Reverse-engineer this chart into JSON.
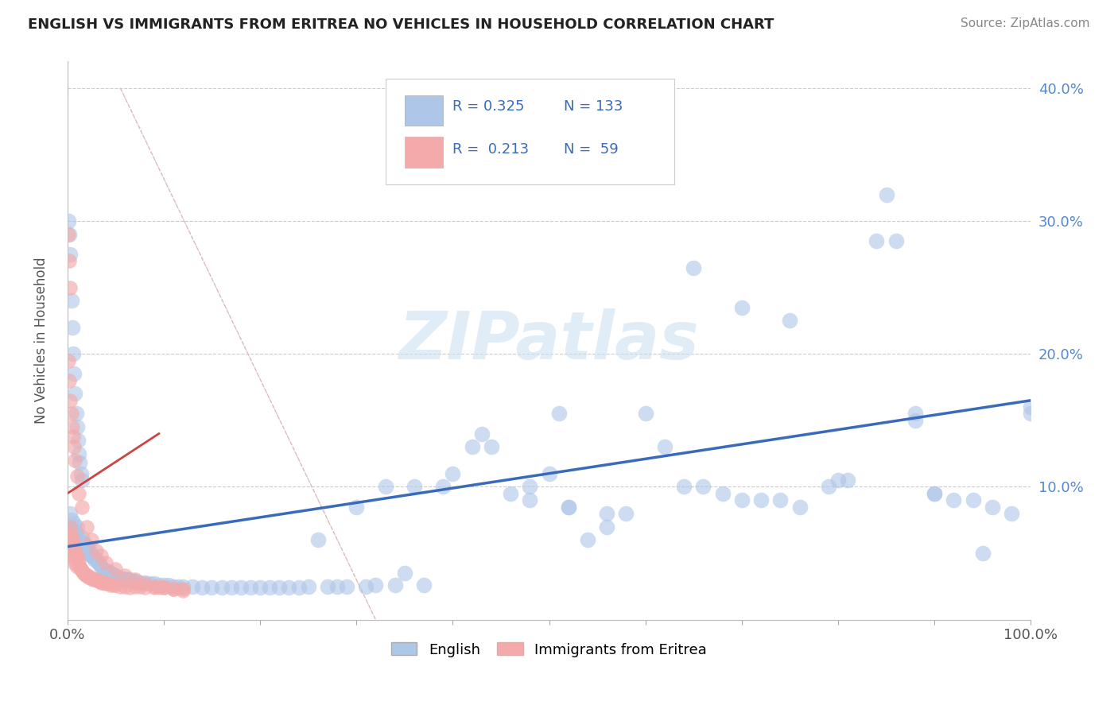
{
  "title": "ENGLISH VS IMMIGRANTS FROM ERITREA NO VEHICLES IN HOUSEHOLD CORRELATION CHART",
  "source": "Source: ZipAtlas.com",
  "ylabel": "No Vehicles in Household",
  "english_color": "#aec6e8",
  "eritrea_color": "#f4aaaa",
  "english_edge_color": "#7aa8d4",
  "eritrea_edge_color": "#e07070",
  "english_line_color": "#3a6bba",
  "eritrea_line_color": "#cc4444",
  "watermark_color": "#c8dff0",
  "xlim": [
    0.0,
    1.0
  ],
  "ylim": [
    0.0,
    0.42
  ],
  "english_x": [
    0.001,
    0.002,
    0.003,
    0.003,
    0.004,
    0.005,
    0.005,
    0.006,
    0.007,
    0.007,
    0.008,
    0.008,
    0.009,
    0.01,
    0.01,
    0.011,
    0.012,
    0.013,
    0.014,
    0.015,
    0.015,
    0.016,
    0.017,
    0.018,
    0.019,
    0.02,
    0.021,
    0.022,
    0.023,
    0.024,
    0.025,
    0.027,
    0.028,
    0.03,
    0.032,
    0.033,
    0.035,
    0.037,
    0.038,
    0.04,
    0.042,
    0.044,
    0.045,
    0.047,
    0.05,
    0.052,
    0.055,
    0.058,
    0.06,
    0.063,
    0.065,
    0.068,
    0.07,
    0.075,
    0.08,
    0.085,
    0.09,
    0.095,
    0.1,
    0.105,
    0.11,
    0.115,
    0.12,
    0.13,
    0.14,
    0.15,
    0.16,
    0.17,
    0.18,
    0.19,
    0.2,
    0.21,
    0.22,
    0.23,
    0.24,
    0.25,
    0.26,
    0.27,
    0.28,
    0.29,
    0.3,
    0.31,
    0.32,
    0.33,
    0.34,
    0.35,
    0.36,
    0.37,
    0.39,
    0.4,
    0.42,
    0.43,
    0.44,
    0.46,
    0.48,
    0.5,
    0.51,
    0.52,
    0.54,
    0.56,
    0.58,
    0.6,
    0.62,
    0.64,
    0.66,
    0.68,
    0.7,
    0.72,
    0.74,
    0.76,
    0.79,
    0.81,
    0.84,
    0.86,
    0.88,
    0.9,
    0.92,
    0.94,
    0.96,
    0.98,
    1.0,
    0.65,
    0.7,
    0.75,
    0.8,
    0.85,
    0.88,
    0.9,
    0.95,
    1.0,
    0.48,
    0.52,
    0.56
  ],
  "english_y": [
    0.07,
    0.065,
    0.08,
    0.06,
    0.075,
    0.068,
    0.055,
    0.065,
    0.06,
    0.072,
    0.058,
    0.067,
    0.063,
    0.07,
    0.055,
    0.06,
    0.055,
    0.06,
    0.053,
    0.058,
    0.062,
    0.055,
    0.058,
    0.053,
    0.056,
    0.052,
    0.055,
    0.05,
    0.052,
    0.049,
    0.048,
    0.047,
    0.045,
    0.045,
    0.043,
    0.042,
    0.04,
    0.038,
    0.037,
    0.036,
    0.036,
    0.035,
    0.035,
    0.034,
    0.033,
    0.032,
    0.031,
    0.031,
    0.03,
    0.03,
    0.03,
    0.029,
    0.029,
    0.028,
    0.028,
    0.027,
    0.027,
    0.026,
    0.026,
    0.026,
    0.025,
    0.025,
    0.025,
    0.025,
    0.024,
    0.024,
    0.024,
    0.024,
    0.024,
    0.024,
    0.024,
    0.024,
    0.024,
    0.024,
    0.024,
    0.025,
    0.06,
    0.025,
    0.025,
    0.025,
    0.085,
    0.025,
    0.026,
    0.1,
    0.026,
    0.035,
    0.1,
    0.026,
    0.1,
    0.11,
    0.13,
    0.14,
    0.13,
    0.095,
    0.1,
    0.11,
    0.155,
    0.085,
    0.06,
    0.07,
    0.08,
    0.155,
    0.13,
    0.1,
    0.1,
    0.095,
    0.09,
    0.09,
    0.09,
    0.085,
    0.1,
    0.105,
    0.285,
    0.285,
    0.155,
    0.095,
    0.09,
    0.09,
    0.085,
    0.08,
    0.155,
    0.265,
    0.235,
    0.225,
    0.105,
    0.32,
    0.15,
    0.095,
    0.05,
    0.16,
    0.09,
    0.085,
    0.08
  ],
  "eritrea_x": [
    0.001,
    0.002,
    0.002,
    0.003,
    0.003,
    0.004,
    0.004,
    0.005,
    0.005,
    0.006,
    0.006,
    0.007,
    0.007,
    0.008,
    0.008,
    0.009,
    0.01,
    0.01,
    0.011,
    0.012,
    0.013,
    0.014,
    0.015,
    0.016,
    0.017,
    0.018,
    0.019,
    0.02,
    0.021,
    0.022,
    0.023,
    0.025,
    0.027,
    0.028,
    0.03,
    0.032,
    0.033,
    0.035,
    0.037,
    0.038,
    0.04,
    0.042,
    0.045,
    0.048,
    0.05,
    0.055,
    0.06,
    0.065,
    0.07,
    0.075,
    0.08,
    0.09,
    0.095,
    0.1,
    0.11,
    0.12,
    0.001,
    0.002,
    0.003
  ],
  "eritrea_y": [
    0.06,
    0.065,
    0.055,
    0.07,
    0.06,
    0.063,
    0.055,
    0.06,
    0.05,
    0.058,
    0.048,
    0.055,
    0.045,
    0.052,
    0.042,
    0.049,
    0.048,
    0.04,
    0.045,
    0.042,
    0.04,
    0.038,
    0.037,
    0.036,
    0.035,
    0.034,
    0.034,
    0.033,
    0.033,
    0.032,
    0.032,
    0.031,
    0.03,
    0.03,
    0.03,
    0.029,
    0.029,
    0.028,
    0.028,
    0.028,
    0.027,
    0.027,
    0.026,
    0.026,
    0.026,
    0.025,
    0.025,
    0.024,
    0.025,
    0.025,
    0.024,
    0.024,
    0.024,
    0.024,
    0.023,
    0.023,
    0.29,
    0.27,
    0.25
  ],
  "eritrea_extra_x": [
    0.001,
    0.002,
    0.003,
    0.004,
    0.005,
    0.006,
    0.007,
    0.008,
    0.01,
    0.012,
    0.015,
    0.02,
    0.025,
    0.03,
    0.035,
    0.04,
    0.05,
    0.06,
    0.07,
    0.08,
    0.09,
    0.1,
    0.11,
    0.12
  ],
  "eritrea_extra_y": [
    0.195,
    0.18,
    0.165,
    0.155,
    0.145,
    0.138,
    0.13,
    0.12,
    0.108,
    0.095,
    0.085,
    0.07,
    0.06,
    0.052,
    0.048,
    0.043,
    0.038,
    0.033,
    0.03,
    0.027,
    0.025,
    0.024,
    0.023,
    0.022
  ],
  "english_extra_x": [
    0.001,
    0.002,
    0.003,
    0.004,
    0.005,
    0.006,
    0.007,
    0.008,
    0.009,
    0.01,
    0.011,
    0.012,
    0.013,
    0.014,
    0.015
  ],
  "english_extra_y": [
    0.3,
    0.29,
    0.275,
    0.24,
    0.22,
    0.2,
    0.185,
    0.17,
    0.155,
    0.145,
    0.135,
    0.125,
    0.118,
    0.11,
    0.105
  ]
}
